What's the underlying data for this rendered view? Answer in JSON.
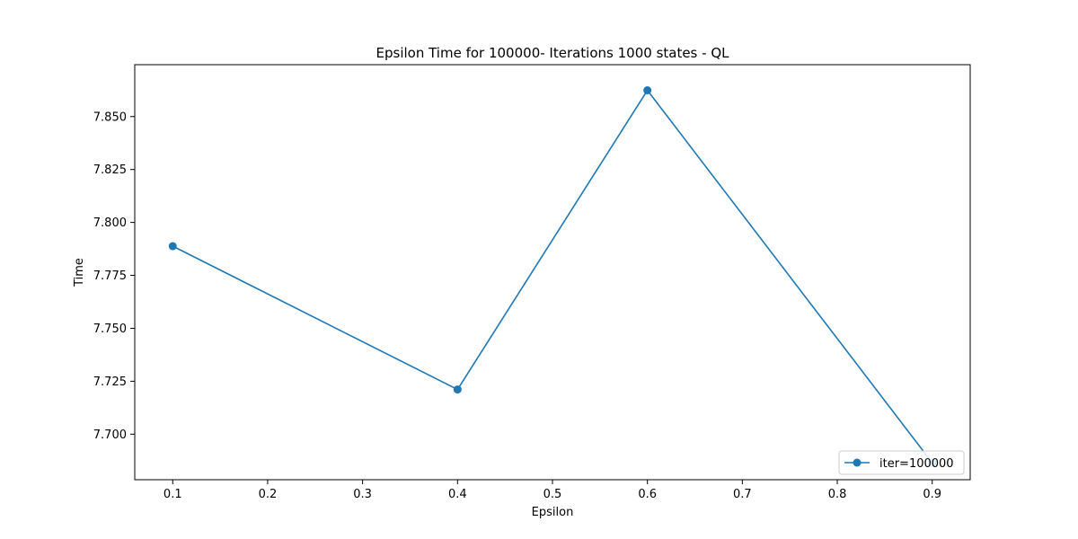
{
  "chart_data": {
    "type": "line",
    "title": "Epsilon Time for 100000- Iterations 1000 states - QL",
    "xlabel": "Epsilon",
    "ylabel": "Time",
    "xlim": [
      0.06,
      0.94
    ],
    "ylim": [
      7.6785,
      7.8745
    ],
    "x_ticks": [
      0.1,
      0.2,
      0.3,
      0.4,
      0.5,
      0.6,
      0.7,
      0.8,
      0.9
    ],
    "x_tick_labels": [
      "0.1",
      "0.2",
      "0.3",
      "0.4",
      "0.5",
      "0.6",
      "0.7",
      "0.8",
      "0.9"
    ],
    "y_ticks": [
      7.7,
      7.725,
      7.75,
      7.775,
      7.8,
      7.825,
      7.85
    ],
    "y_tick_labels": [
      "7.700",
      "7.725",
      "7.750",
      "7.775",
      "7.800",
      "7.825",
      "7.850"
    ],
    "grid": false,
    "legend_position": "lower-right",
    "series": [
      {
        "name": "iter=100000",
        "color": "#1f77b4",
        "marker": "circle",
        "x": [
          0.1,
          0.4,
          0.6,
          0.9
        ],
        "y": [
          7.7888,
          7.7211,
          7.8624,
          7.6865
        ]
      }
    ]
  }
}
